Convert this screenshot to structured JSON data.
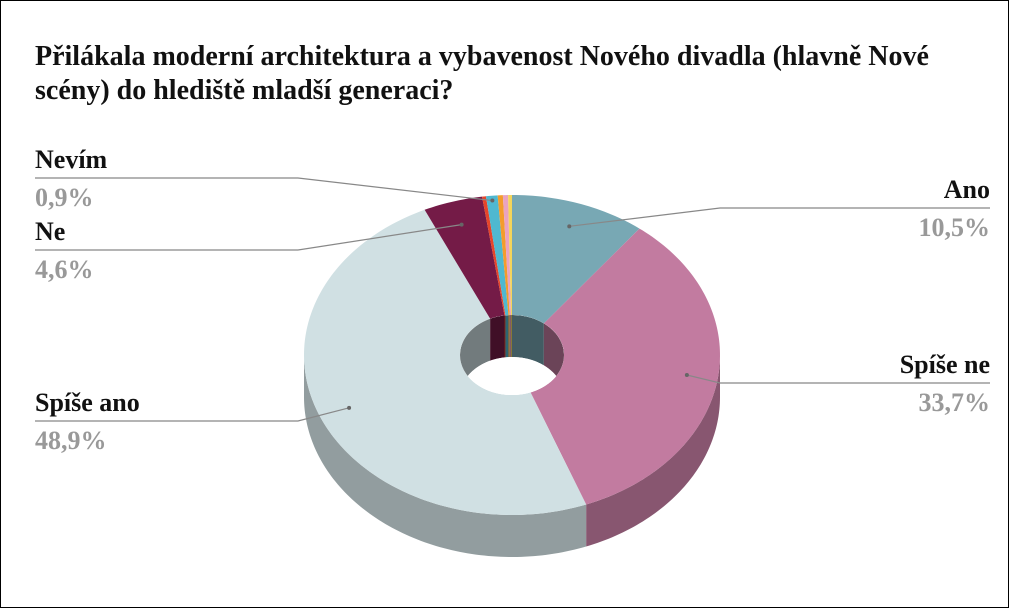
{
  "chart_data": {
    "type": "pie",
    "title": "Přilákala moderní architektura a vybavenost Nového divadla (hlavně Nové scény) do hlediště mladší generaci?",
    "categories": [
      "Ano",
      "Spíše ne",
      "Spíše ano",
      "Ne",
      null,
      "Nevím",
      null,
      null,
      null
    ],
    "values": [
      10.5,
      33.7,
      48.9,
      4.6,
      0.3,
      0.9,
      0.4,
      0.4,
      0.3
    ],
    "value_labels": [
      "10,5%",
      "33,7%",
      "48,9%",
      "4,6%",
      null,
      "0,9%",
      null,
      null,
      null
    ],
    "colors": [
      "#78a8b4",
      "#c27ba0",
      "#d0e0e3",
      "#741b47",
      "#e6452a",
      "#4fb8d0",
      "#f39c2c",
      "#e9a3c0",
      "#f5d55a"
    ],
    "donut": true,
    "three_d": true
  }
}
